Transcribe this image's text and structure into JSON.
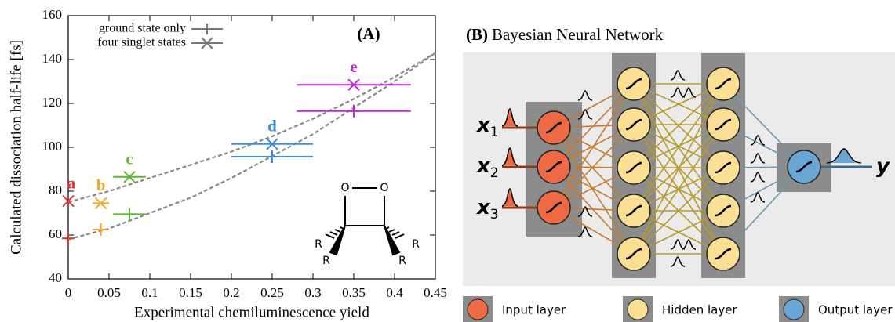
{
  "chart_data": {
    "type": "scatter",
    "panel_label": "(A)",
    "xlabel": "Experimental chemiluminescence yield",
    "ylabel": "Calculated dissociation half-life [fs]",
    "xlim": [
      0,
      0.45
    ],
    "xticks": [
      0,
      0.05,
      0.1,
      0.15,
      0.2,
      0.25,
      0.3,
      0.35,
      0.4,
      0.45
    ],
    "ylim": [
      40,
      160
    ],
    "yticks": [
      40,
      60,
      80,
      100,
      120,
      140,
      160
    ],
    "categories": [
      "a",
      "b",
      "c",
      "d",
      "e"
    ],
    "category_colors": [
      "#e8332a",
      "#f5a623",
      "#5cb82e",
      "#3b8de0",
      "#c026d3"
    ],
    "x": [
      0,
      0.04,
      0.075,
      0.25,
      0.35
    ],
    "xerr": [
      null,
      0.01,
      0.02,
      0.05,
      0.07
    ],
    "series": [
      {
        "name": "ground state only",
        "marker": "plus",
        "color": "#777777",
        "values": [
          58.5,
          62.5,
          69.5,
          95.7,
          116.5
        ]
      },
      {
        "name": "four singlet states",
        "marker": "cross",
        "color": "#777777",
        "values": [
          75.5,
          74.5,
          86.5,
          101.5,
          128.5
        ]
      }
    ],
    "fits": [
      {
        "x": [
          0,
          0.05,
          0.1,
          0.15,
          0.2,
          0.25,
          0.3,
          0.35,
          0.4,
          0.45
        ],
        "values": [
          58,
          63,
          70,
          77,
          86,
          96,
          106,
          118,
          130,
          143
        ],
        "color": "#888888"
      },
      {
        "x": [
          0,
          0.05,
          0.1,
          0.15,
          0.2,
          0.25,
          0.3,
          0.35,
          0.4,
          0.45
        ],
        "values": [
          75,
          80,
          86,
          92,
          98,
          105,
          113,
          122,
          132,
          143
        ],
        "color": "#888888"
      }
    ],
    "legend": "upper left",
    "molecule_labels": [
      "O",
      "O",
      "R",
      "R",
      "R",
      "R"
    ]
  },
  "diagram": {
    "panel_label": "(B)",
    "title": "Bayesian Neural Network",
    "inputs": [
      {
        "symbol": "x",
        "subscript": "1"
      },
      {
        "symbol": "x",
        "subscript": "2"
      },
      {
        "symbol": "x",
        "subscript": "3"
      }
    ],
    "output": "y",
    "legend": [
      "Input layer",
      "Hidden layer",
      "Output layer"
    ]
  }
}
